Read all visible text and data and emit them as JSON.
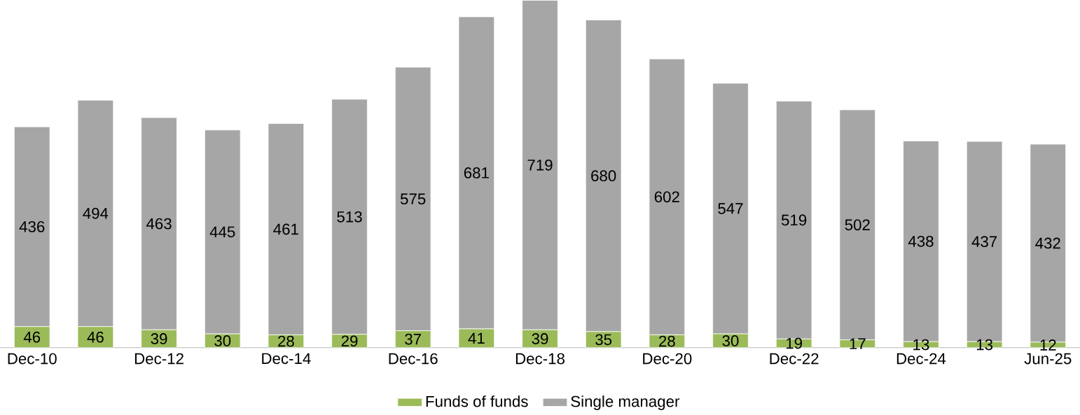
{
  "chart_data": {
    "type": "bar",
    "stacked": true,
    "data_labels": true,
    "legend": "bottom",
    "categories": [
      "Dec-10",
      null,
      "Dec-12",
      null,
      "Dec-14",
      null,
      "Dec-16",
      null,
      "Dec-18",
      null,
      "Dec-20",
      null,
      "Dec-22",
      null,
      "Dec-24",
      null,
      "Jun-25"
    ],
    "series": [
      {
        "name": "Funds of funds",
        "color": "#9bbb59",
        "values": [
          46,
          46,
          39,
          30,
          28,
          29,
          37,
          41,
          39,
          35,
          28,
          30,
          19,
          17,
          13,
          13,
          12
        ]
      },
      {
        "name": "Single manager",
        "color": "#a6a6a6",
        "values": [
          436,
          494,
          463,
          445,
          461,
          513,
          575,
          681,
          719,
          680,
          602,
          547,
          519,
          502,
          438,
          437,
          432
        ]
      }
    ]
  }
}
